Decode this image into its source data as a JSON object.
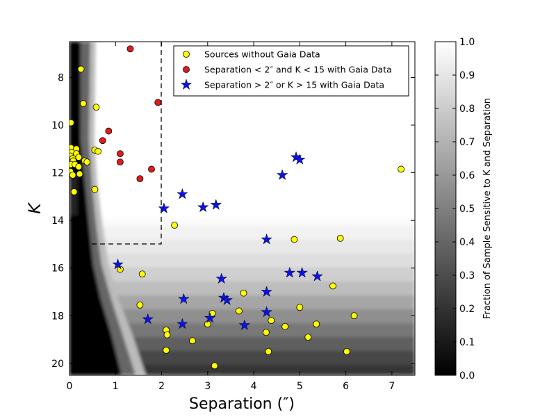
{
  "chart_data": {
    "type": "scatter",
    "title": "",
    "xlabel": "Separation (″)",
    "ylabel": "K",
    "xlim": [
      0,
      7.5
    ],
    "ylim": [
      20.5,
      6.5
    ],
    "y_inverted": true,
    "xticks": [
      0,
      1,
      2,
      3,
      4,
      5,
      6,
      7
    ],
    "yticks": [
      8,
      10,
      12,
      14,
      16,
      18,
      20
    ],
    "legend_position": "top-right",
    "legend": [
      {
        "label": "Sources without Gaia Data",
        "series": "no_gaia"
      },
      {
        "label": "Separation < 2″ and K < 15 with Gaia Data",
        "series": "gaia_close"
      },
      {
        "label": "Separation > 2″ or K > 15 with Gaia Data",
        "series": "gaia_far"
      }
    ],
    "colorbar": {
      "label": "Fraction of Sample Sensitive to K and Separation",
      "range": [
        0.0,
        1.0
      ],
      "ticks": [
        "0.0",
        "0.1",
        "0.2",
        "0.3",
        "0.4",
        "0.5",
        "0.6",
        "0.7",
        "0.8",
        "0.9",
        "1.0"
      ]
    },
    "selection_box": {
      "x": [
        0,
        2
      ],
      "y": [
        6.5,
        15
      ],
      "style": "dashed"
    },
    "series": [
      {
        "name": "no_gaia",
        "marker": "circle",
        "color": "#ffff00",
        "points": [
          [
            0.25,
            7.65
          ],
          [
            0.3,
            9.1
          ],
          [
            0.58,
            9.25
          ],
          [
            0.03,
            9.9
          ],
          [
            0.03,
            10.95
          ],
          [
            0.15,
            11.0
          ],
          [
            0.05,
            11.15
          ],
          [
            0.15,
            11.2
          ],
          [
            0.55,
            11.05
          ],
          [
            0.62,
            11.1
          ],
          [
            0.02,
            11.3
          ],
          [
            0.2,
            11.35
          ],
          [
            0.07,
            11.4
          ],
          [
            0.08,
            11.5
          ],
          [
            0.33,
            11.5
          ],
          [
            0.38,
            11.55
          ],
          [
            0.03,
            11.65
          ],
          [
            0.12,
            11.65
          ],
          [
            0.2,
            11.75
          ],
          [
            0.02,
            11.95
          ],
          [
            0.22,
            12.05
          ],
          [
            0.07,
            12.1
          ],
          [
            0.55,
            12.7
          ],
          [
            0.1,
            12.8
          ],
          [
            1.1,
            16.05
          ],
          [
            1.58,
            16.25
          ],
          [
            1.53,
            17.55
          ],
          [
            2.28,
            14.2
          ],
          [
            2.1,
            18.6
          ],
          [
            2.12,
            18.8
          ],
          [
            2.1,
            19.45
          ],
          [
            2.67,
            19.05
          ],
          [
            3.0,
            18.35
          ],
          [
            3.1,
            17.9
          ],
          [
            3.15,
            20.1
          ],
          [
            3.68,
            17.8
          ],
          [
            3.78,
            17.05
          ],
          [
            4.27,
            18.7
          ],
          [
            4.32,
            19.5
          ],
          [
            4.38,
            18.2
          ],
          [
            4.68,
            18.45
          ],
          [
            4.88,
            14.8
          ],
          [
            5.0,
            17.65
          ],
          [
            5.18,
            18.9
          ],
          [
            5.36,
            18.35
          ],
          [
            5.72,
            16.75
          ],
          [
            5.88,
            14.75
          ],
          [
            6.02,
            19.5
          ],
          [
            6.18,
            18.0
          ],
          [
            7.2,
            11.85
          ]
        ]
      },
      {
        "name": "gaia_close",
        "marker": "circle",
        "color": "#e21b1b",
        "points": [
          [
            1.32,
            6.8
          ],
          [
            1.92,
            9.05
          ],
          [
            0.85,
            10.25
          ],
          [
            0.72,
            10.65
          ],
          [
            1.1,
            11.2
          ],
          [
            1.1,
            11.55
          ],
          [
            1.78,
            11.85
          ],
          [
            1.53,
            12.25
          ]
        ]
      },
      {
        "name": "gaia_far",
        "marker": "star",
        "color": "#0a14e6",
        "points": [
          [
            4.92,
            11.35
          ],
          [
            5.0,
            11.45
          ],
          [
            4.62,
            12.1
          ],
          [
            2.45,
            12.9
          ],
          [
            2.05,
            13.5
          ],
          [
            2.9,
            13.45
          ],
          [
            3.18,
            13.35
          ],
          [
            4.28,
            14.8
          ],
          [
            1.05,
            15.85
          ],
          [
            4.78,
            16.2
          ],
          [
            5.05,
            16.2
          ],
          [
            5.38,
            16.35
          ],
          [
            3.3,
            16.45
          ],
          [
            4.28,
            17.0
          ],
          [
            2.48,
            17.3
          ],
          [
            3.35,
            17.25
          ],
          [
            3.42,
            17.35
          ],
          [
            1.7,
            18.15
          ],
          [
            3.05,
            18.1
          ],
          [
            4.28,
            17.85
          ],
          [
            2.45,
            18.35
          ],
          [
            3.8,
            18.4
          ]
        ]
      }
    ]
  }
}
